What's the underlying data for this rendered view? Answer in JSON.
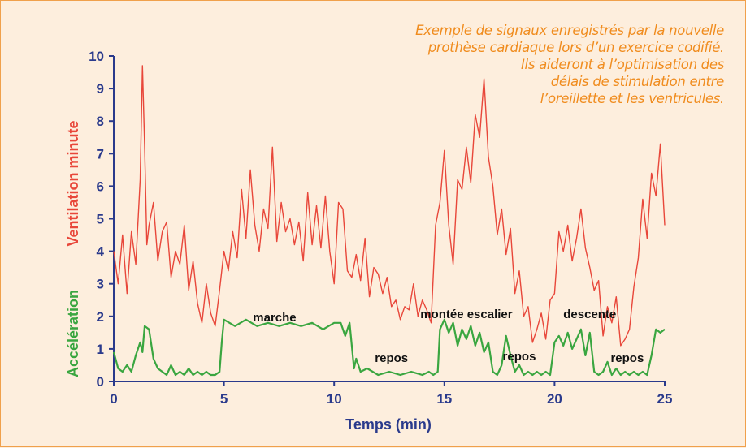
{
  "caption": {
    "line1": "Exemple de signaux enregistrés par la nouvelle",
    "line2": "prothèse cardiaque lors d’un exercice codifié.",
    "line3": "Ils aideront à l’optimisation des",
    "line4": "délais de stimulation entre",
    "line5": "l’oreillette et les ventricules."
  },
  "chart_data": {
    "type": "line",
    "title": "",
    "xlabel": "Temps (min)",
    "ylabel_top": "Ventilation minute",
    "ylabel_bottom": "Accélération",
    "xlim": [
      0,
      25
    ],
    "ylim": [
      0,
      10
    ],
    "x_ticks": [
      "0",
      "5",
      "10",
      "15",
      "20",
      "25"
    ],
    "y_ticks": [
      "0",
      "1",
      "2",
      "3",
      "4",
      "5",
      "6",
      "7",
      "8",
      "9",
      "10"
    ],
    "grid": false,
    "colors": {
      "ventilation": "#e8473a",
      "acceleration": "#3aa640",
      "axis": "#2a3a8c",
      "caption": "#f08c1e"
    },
    "annotations": [
      {
        "text": "marche",
        "x": 7.3,
        "y": 1.85
      },
      {
        "text": "repos",
        "x": 12.6,
        "y": 0.6
      },
      {
        "text": "montée escalier",
        "x": 16.0,
        "y": 1.95
      },
      {
        "text": "repos",
        "x": 18.4,
        "y": 0.65
      },
      {
        "text": "descente",
        "x": 21.6,
        "y": 1.95
      },
      {
        "text": "repos",
        "x": 23.3,
        "y": 0.6
      }
    ],
    "series": [
      {
        "key": "ventilation",
        "x": [
          0,
          0.2,
          0.4,
          0.6,
          0.8,
          1.0,
          1.2,
          1.3,
          1.4,
          1.5,
          1.6,
          1.8,
          2.0,
          2.2,
          2.4,
          2.6,
          2.8,
          3.0,
          3.2,
          3.4,
          3.6,
          3.8,
          4.0,
          4.2,
          4.4,
          4.6,
          4.8,
          5.0,
          5.2,
          5.4,
          5.6,
          5.8,
          6.0,
          6.2,
          6.4,
          6.6,
          6.8,
          7.0,
          7.2,
          7.4,
          7.6,
          7.8,
          8.0,
          8.2,
          8.4,
          8.6,
          8.8,
          9.0,
          9.2,
          9.4,
          9.6,
          9.8,
          10.0,
          10.2,
          10.4,
          10.6,
          10.8,
          11.0,
          11.2,
          11.4,
          11.6,
          11.8,
          12.0,
          12.2,
          12.4,
          12.6,
          12.8,
          13.0,
          13.2,
          13.4,
          13.6,
          13.8,
          14.0,
          14.2,
          14.4,
          14.6,
          14.8,
          15.0,
          15.2,
          15.4,
          15.6,
          15.8,
          16.0,
          16.2,
          16.4,
          16.6,
          16.8,
          17.0,
          17.2,
          17.4,
          17.6,
          17.8,
          18.0,
          18.2,
          18.4,
          18.6,
          18.8,
          19.0,
          19.2,
          19.4,
          19.6,
          19.8,
          20.0,
          20.2,
          20.4,
          20.6,
          20.8,
          21.0,
          21.2,
          21.4,
          21.6,
          21.8,
          22.0,
          22.2,
          22.4,
          22.6,
          22.8,
          23.0,
          23.2,
          23.4,
          23.6,
          23.8,
          24.0,
          24.2,
          24.4,
          24.6,
          24.8,
          25.0
        ],
        "y": [
          4.0,
          3.0,
          4.5,
          2.7,
          4.6,
          3.6,
          6.2,
          9.7,
          7.2,
          4.2,
          4.8,
          5.5,
          3.7,
          4.6,
          4.9,
          3.2,
          4.0,
          3.6,
          4.8,
          2.8,
          3.7,
          2.4,
          1.8,
          3.0,
          2.1,
          1.7,
          2.8,
          4.0,
          3.4,
          4.6,
          3.8,
          5.9,
          4.4,
          6.5,
          4.8,
          4.0,
          5.3,
          4.7,
          7.2,
          4.3,
          5.5,
          4.6,
          5.0,
          4.2,
          4.9,
          3.7,
          5.8,
          4.2,
          5.4,
          4.1,
          5.7,
          4.0,
          3.0,
          5.5,
          5.3,
          3.4,
          3.2,
          3.9,
          3.1,
          4.4,
          2.6,
          3.5,
          3.3,
          2.7,
          3.2,
          2.3,
          2.5,
          1.9,
          2.3,
          2.2,
          3.0,
          2.0,
          2.5,
          2.2,
          1.8,
          4.8,
          5.5,
          7.1,
          4.8,
          3.6,
          6.2,
          5.9,
          7.2,
          6.1,
          8.2,
          7.5,
          9.3,
          6.9,
          6.0,
          4.5,
          5.3,
          3.9,
          4.7,
          2.7,
          3.4,
          2.0,
          2.3,
          1.2,
          1.6,
          2.1,
          1.3,
          2.5,
          2.7,
          4.6,
          4.0,
          4.8,
          3.7,
          4.4,
          5.3,
          4.1,
          3.5,
          2.8,
          3.1,
          1.4,
          2.3,
          1.8,
          2.6,
          1.1,
          1.3,
          1.6,
          2.9,
          3.8,
          5.6,
          4.4,
          6.4,
          5.7,
          7.3,
          4.8
        ]
      },
      {
        "key": "acceleration",
        "x": [
          0,
          0.2,
          0.4,
          0.6,
          0.8,
          1.0,
          1.2,
          1.3,
          1.4,
          1.6,
          1.8,
          2.0,
          2.2,
          2.4,
          2.6,
          2.8,
          3.0,
          3.2,
          3.4,
          3.6,
          3.8,
          4.0,
          4.2,
          4.4,
          4.6,
          4.8,
          4.9,
          5.0,
          5.5,
          6.0,
          6.5,
          7.0,
          7.5,
          8.0,
          8.5,
          9.0,
          9.5,
          10.0,
          10.3,
          10.5,
          10.7,
          10.9,
          11.0,
          11.2,
          11.5,
          12.0,
          12.5,
          13.0,
          13.5,
          14.0,
          14.3,
          14.5,
          14.7,
          14.8,
          15.0,
          15.2,
          15.4,
          15.6,
          15.8,
          16.0,
          16.2,
          16.4,
          16.6,
          16.8,
          17.0,
          17.2,
          17.4,
          17.6,
          17.8,
          18.0,
          18.2,
          18.4,
          18.6,
          18.8,
          19.0,
          19.2,
          19.4,
          19.6,
          19.8,
          20.0,
          20.2,
          20.4,
          20.6,
          20.8,
          21.0,
          21.2,
          21.4,
          21.6,
          21.8,
          22.0,
          22.2,
          22.4,
          22.6,
          22.8,
          23.0,
          23.2,
          23.4,
          23.6,
          23.8,
          24.0,
          24.2,
          24.4,
          24.6,
          24.8,
          25.0
        ],
        "y": [
          0.9,
          0.4,
          0.3,
          0.5,
          0.3,
          0.8,
          1.2,
          0.9,
          1.7,
          1.6,
          0.7,
          0.4,
          0.3,
          0.2,
          0.5,
          0.2,
          0.3,
          0.2,
          0.4,
          0.2,
          0.3,
          0.2,
          0.3,
          0.2,
          0.2,
          0.3,
          1.2,
          1.9,
          1.7,
          1.9,
          1.7,
          1.8,
          1.7,
          1.8,
          1.7,
          1.8,
          1.6,
          1.8,
          1.8,
          1.4,
          1.8,
          0.4,
          0.7,
          0.3,
          0.4,
          0.2,
          0.3,
          0.2,
          0.3,
          0.2,
          0.3,
          0.2,
          0.3,
          1.6,
          1.9,
          1.5,
          1.8,
          1.1,
          1.6,
          1.3,
          1.7,
          1.1,
          1.5,
          0.9,
          1.2,
          0.3,
          0.2,
          0.5,
          1.4,
          0.8,
          0.3,
          0.5,
          0.2,
          0.3,
          0.2,
          0.3,
          0.2,
          0.3,
          0.2,
          1.2,
          1.4,
          1.1,
          1.5,
          1.0,
          1.3,
          1.6,
          0.8,
          1.5,
          0.3,
          0.2,
          0.3,
          0.6,
          0.2,
          0.4,
          0.2,
          0.3,
          0.2,
          0.3,
          0.2,
          0.3,
          0.2,
          0.8,
          1.6,
          1.5,
          1.6
        ]
      }
    ]
  }
}
